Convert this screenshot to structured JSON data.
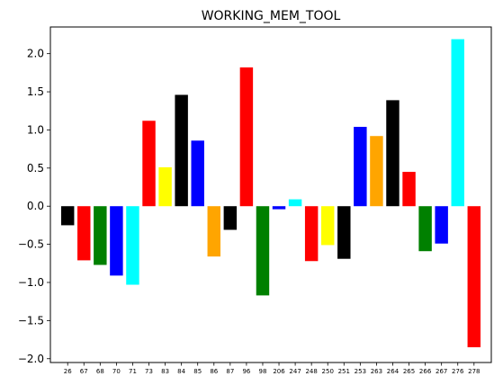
{
  "chart_data": {
    "type": "bar",
    "title": "WORKING_MEM_TOOL",
    "xlabel": "",
    "ylabel": "",
    "ylim": [
      -2.05,
      2.35
    ],
    "yticks": [
      -2.0,
      -1.5,
      -1.0,
      -0.5,
      0.0,
      0.5,
      1.0,
      1.5,
      2.0
    ],
    "ytick_labels": [
      "−2.0",
      "−1.5",
      "−1.0",
      "−0.5",
      "0.0",
      "0.5",
      "1.0",
      "1.5",
      "2.0"
    ],
    "grid": false,
    "categories": [
      "26",
      "67",
      "68",
      "70",
      "71",
      "73",
      "83",
      "84",
      "85",
      "86",
      "87",
      "96",
      "98",
      "206",
      "247",
      "248",
      "250",
      "251",
      "253",
      "263",
      "264",
      "265",
      "266",
      "267",
      "276",
      "278"
    ],
    "values": [
      -0.25,
      -0.71,
      -0.77,
      -0.91,
      -1.03,
      1.12,
      0.51,
      1.46,
      0.86,
      -0.66,
      -0.31,
      1.82,
      -1.17,
      -0.04,
      0.09,
      -0.72,
      -0.51,
      -0.69,
      1.04,
      0.92,
      1.39,
      0.45,
      -0.59,
      -0.49,
      2.19,
      -1.85
    ],
    "colors": [
      "#000000",
      "#ff0000",
      "#008000",
      "#0000ff",
      "#00ffff",
      "#ff0000",
      "#ffff00",
      "#000000",
      "#0000ff",
      "#ffa500",
      "#000000",
      "#ff0000",
      "#008000",
      "#0000ff",
      "#00ffff",
      "#ff0000",
      "#ffff00",
      "#000000",
      "#0000ff",
      "#ffa500",
      "#000000",
      "#ff0000",
      "#008000",
      "#0000ff",
      "#00ffff",
      "#ff0000"
    ]
  }
}
